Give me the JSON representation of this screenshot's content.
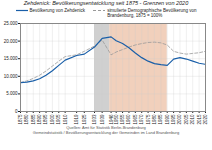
{
  "chart_data": {
    "type": "line",
    "title": "Zehdenick: Bevölkerungsentwicklung seit 1875 - Grenzen von 2020",
    "caption": [
      "Quellen: Amt für Statistik Berlin-Brandenburg",
      "Gemeindstatistik / Bevölkerungsentwicklung der Gemeinden im Land Brandenburg"
    ],
    "x": [
      1875,
      1880,
      1885,
      1890,
      1895,
      1900,
      1905,
      1910,
      1919,
      1925,
      1933,
      1939,
      1946,
      1950,
      1955,
      1960,
      1965,
      1970,
      1975,
      1980,
      1985,
      1990,
      1995,
      2000,
      2005,
      2010,
      2015,
      2020
    ],
    "series": [
      {
        "name": "Bevölkerung von Zehdenick",
        "color": "#1a5fa8",
        "line_style": "solid",
        "values": [
          8200,
          8350,
          8700,
          9300,
          10300,
          11600,
          13100,
          14600,
          15900,
          16300,
          18300,
          20800,
          21200,
          20100,
          19300,
          18100,
          16600,
          15300,
          14300,
          13600,
          13300,
          13100,
          14900,
          15300,
          14900,
          14300,
          13700,
          13400
        ]
      },
      {
        "name": "simulierte Demographische Bevölkerung von\nBrandenburg, 1875 = 100%",
        "color": "#999999",
        "line_style": "dashed",
        "values": [
          8200,
          8700,
          9400,
          10300,
          11500,
          12900,
          14300,
          15600,
          16100,
          17100,
          18600,
          20300,
          16100,
          16900,
          17600,
          18300,
          18900,
          19300,
          19600,
          19700,
          19500,
          18900,
          17100,
          16600,
          16300,
          16500,
          16700,
          17100
        ]
      }
    ],
    "spans": [
      {
        "start": 1933,
        "end": 1945,
        "color": "#b0b0b0"
      },
      {
        "start": 1945,
        "end": 1990,
        "color": "#e8b090"
      }
    ],
    "xlim": [
      1875,
      2020
    ],
    "xticks": [
      1875,
      1880,
      1885,
      1890,
      1895,
      1900,
      1905,
      1910,
      1919,
      1925,
      1933,
      1939,
      1946,
      1950,
      1955,
      1960,
      1965,
      1970,
      1975,
      1980,
      1985,
      1990,
      1995,
      2000,
      2005,
      2010,
      2015,
      2020
    ],
    "ylim": [
      0,
      25000
    ],
    "yticks": [
      0,
      {
        "value": 5000,
        "label": "5.000"
      },
      {
        "value": 10000,
        "label": "10.000"
      },
      {
        "value": 15000,
        "label": "15.000"
      },
      {
        "value": 20000,
        "label": "20.000"
      },
      {
        "value": 25000,
        "label": "25.000"
      }
    ],
    "grid": true,
    "legend": "top"
  }
}
